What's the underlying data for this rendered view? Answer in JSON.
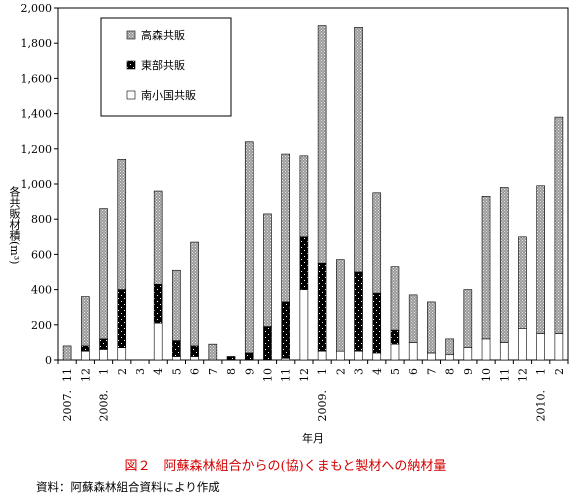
{
  "chart_data": {
    "type": "bar",
    "stacked": true,
    "ylabel": "各共販材積(m³)",
    "xlabel": "年月",
    "ylim": [
      0,
      2000
    ],
    "yticks": [
      "0",
      "200",
      "400",
      "600",
      "800",
      "1,000",
      "1,200",
      "1,400",
      "1,600",
      "1,800",
      "2,000"
    ],
    "categories": [
      "11",
      "12",
      "1",
      "2",
      "3",
      "4",
      "5",
      "6",
      "7",
      "8",
      "9",
      "10",
      "11",
      "12",
      "1",
      "2",
      "3",
      "4",
      "5",
      "6",
      "7",
      "8",
      "9",
      "10",
      "11",
      "12",
      "1",
      "2"
    ],
    "year_labels": [
      {
        "index": 0,
        "text": "2007."
      },
      {
        "index": 2,
        "text": "2008."
      },
      {
        "index": 14,
        "text": "2009."
      },
      {
        "index": 26,
        "text": "2010."
      }
    ],
    "series": [
      {
        "name": "南小国共販",
        "values": [
          0,
          50,
          60,
          70,
          0,
          210,
          20,
          20,
          0,
          0,
          0,
          0,
          10,
          400,
          50,
          50,
          50,
          40,
          90,
          100,
          40,
          30,
          70,
          120,
          100,
          180,
          150,
          150
        ]
      },
      {
        "name": "東部共販",
        "values": [
          0,
          30,
          60,
          330,
          0,
          220,
          90,
          60,
          0,
          20,
          40,
          190,
          320,
          300,
          500,
          0,
          450,
          340,
          80,
          0,
          0,
          0,
          0,
          0,
          0,
          0,
          0,
          0
        ]
      },
      {
        "name": "高森共販",
        "values": [
          80,
          280,
          740,
          740,
          0,
          530,
          400,
          590,
          90,
          0,
          1200,
          640,
          840,
          460,
          1350,
          520,
          1390,
          570,
          360,
          270,
          290,
          90,
          330,
          810,
          880,
          520,
          840,
          1230
        ]
      }
    ],
    "legend": "top-left"
  },
  "legend": {
    "items": [
      {
        "label": "高森共販",
        "pattern": "gray"
      },
      {
        "label": "東部共販",
        "pattern": "black"
      },
      {
        "label": "南小国共販",
        "pattern": "white"
      }
    ]
  },
  "caption": "図２　阿蘇森林組合からの(協)くまもと製材への納材量",
  "source": "資料：阿蘇森林組合資料により作成"
}
